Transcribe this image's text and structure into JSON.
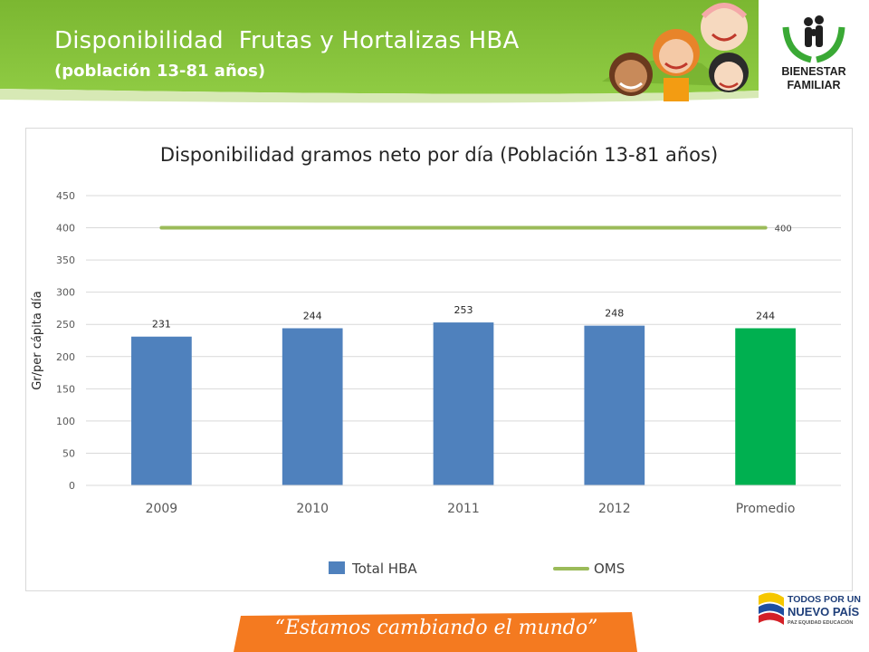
{
  "slide": {
    "title": "Disponibilidad  Frutas y Hortalizas HBA",
    "subtitle": "(población 13-81 años)"
  },
  "brand": {
    "logo_line1": "BIENESTAR",
    "logo_line2": "FAMILIAR",
    "gov_line1": "TODOS POR UN",
    "gov_line2": "NUEVO PAÍS",
    "gov_line3": "PAZ  EQUIDAD  EDUCACIÓN",
    "slogan": "“Estamos cambiando el mundo”"
  },
  "colors": {
    "header_green": "#8cc63f",
    "bar_blue": "#4f81bd",
    "bar_green": "#00b050",
    "oms_line": "#9bbb59",
    "footer_orange": "#f47a20"
  },
  "icons": [
    "children-illustration",
    "bienestar-familiar-logo",
    "colombia-gov-logo"
  ],
  "chart_data": {
    "type": "bar",
    "title": "Disponibilidad gramos neto por día (Población 13-81 años)",
    "ylabel": "Gr/per cápita día",
    "xlabel": "",
    "ylim": [
      0,
      450
    ],
    "yticks": [
      "0",
      "50",
      "100",
      "150",
      "200",
      "250",
      "300",
      "350",
      "400",
      "450"
    ],
    "categories": [
      "2009",
      "2010",
      "2011",
      "2012",
      "Promedio"
    ],
    "series": [
      {
        "name": "Total HBA",
        "values": [
          231,
          244,
          253,
          248,
          244
        ],
        "labels": [
          "231",
          "244",
          "253",
          "248",
          "244"
        ]
      },
      {
        "name": "OMS",
        "values": [
          400,
          400,
          400,
          400,
          400
        ],
        "label": "400"
      }
    ],
    "grid": true,
    "legend": "bottom"
  }
}
